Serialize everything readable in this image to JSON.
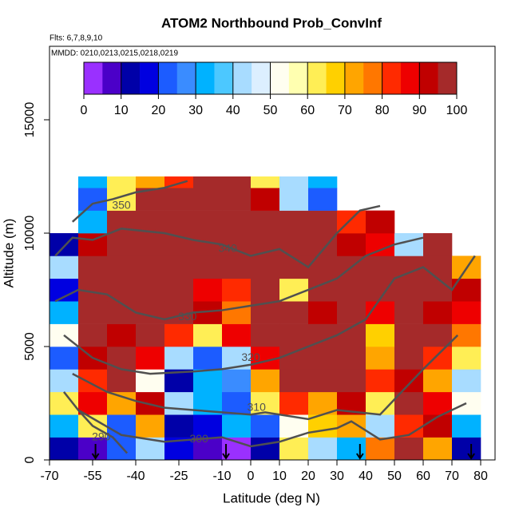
{
  "chart_data": {
    "type": "heatmap",
    "title": "ATOM2 Northbound Prob_ConvInf",
    "subtitle": "Flts: 6,7,8,9,10",
    "annotations": [
      "MMDD: 0210,0213,0215,0218,0219"
    ],
    "x_label": "Latitude (deg N)",
    "y_label": "Altitude (m)",
    "xlim": [
      -70,
      85
    ],
    "ylim": [
      0,
      18240
    ],
    "xticks": [
      -70,
      -55,
      -40,
      -25,
      -10,
      0,
      10,
      20,
      30,
      40,
      50,
      60,
      70,
      80
    ],
    "yticks": [
      0,
      5000,
      10000,
      15000
    ],
    "x_edges": [
      -70,
      -60,
      -50,
      -40,
      -30,
      -20,
      -10,
      0,
      10,
      20,
      30,
      40,
      50,
      60,
      70,
      80
    ],
    "y_edges": [
      0,
      1000,
      2000,
      3000,
      4000,
      5000,
      6000,
      7000,
      8000,
      9000,
      10000,
      11000,
      12000,
      12500
    ],
    "z": [
      [
        10,
        5,
        20,
        40,
        15,
        5,
        3,
        10,
        60,
        40,
        30,
        75,
        95,
        70,
        10
      ],
      [
        30,
        60,
        20,
        70,
        10,
        15,
        30,
        20,
        50,
        65,
        70,
        40,
        80,
        90,
        30
      ],
      [
        60,
        85,
        70,
        90,
        40,
        30,
        20,
        60,
        80,
        70,
        90,
        60,
        95,
        85,
        50
      ],
      [
        40,
        80,
        95,
        50,
        10,
        30,
        25,
        70,
        95,
        95,
        95,
        80,
        90,
        70,
        40
      ],
      [
        20,
        90,
        95,
        85,
        40,
        20,
        40,
        85,
        95,
        95,
        95,
        70,
        95,
        80,
        60
      ],
      [
        50,
        95,
        90,
        95,
        80,
        60,
        85,
        95,
        95,
        95,
        95,
        65,
        95,
        95,
        75
      ],
      [
        30,
        95,
        95,
        95,
        95,
        90,
        75,
        95,
        95,
        90,
        95,
        85,
        95,
        90,
        85
      ],
      [
        15,
        95,
        95,
        95,
        95,
        85,
        80,
        95,
        60,
        95,
        95,
        95,
        95,
        95,
        90
      ],
      [
        40,
        95,
        95,
        95,
        95,
        95,
        95,
        95,
        95,
        95,
        95,
        95,
        95,
        95,
        70
      ],
      [
        10,
        90,
        95,
        95,
        95,
        95,
        95,
        95,
        95,
        95,
        90,
        85,
        40,
        95,
        null
      ],
      [
        null,
        30,
        95,
        95,
        95,
        95,
        95,
        95,
        95,
        95,
        80,
        90,
        null,
        null,
        null
      ],
      [
        null,
        20,
        60,
        95,
        95,
        95,
        95,
        90,
        40,
        20,
        null,
        null,
        null,
        null,
        null
      ],
      [
        null,
        30,
        60,
        70,
        80,
        95,
        95,
        60,
        40,
        30,
        null,
        null,
        null,
        null,
        null
      ]
    ],
    "clim": [
      0,
      100
    ],
    "cticks": [
      0,
      10,
      20,
      30,
      40,
      50,
      60,
      70,
      80,
      90,
      100
    ],
    "colors": [
      "#9a30ff",
      "#4b00c8",
      "#0000a8",
      "#0000e0",
      "#1c5cff",
      "#3a8cff",
      "#00b2ff",
      "#4cc8ff",
      "#a8dcff",
      "#dcefff",
      "#fffef0",
      "#ffffb0",
      "#ffee55",
      "#ffd000",
      "#ffa500",
      "#ff7700",
      "#ff2a00",
      "#ee0000",
      "#c00000",
      "#a52a2a"
    ],
    "contour_color": "#505050",
    "contours": [
      {
        "level": 350,
        "x": [
          -62,
          -55,
          -48,
          -40,
          -30,
          -22
        ],
        "y": [
          10500,
          11300,
          11500,
          11800,
          12000,
          12300
        ],
        "label_x": -45,
        "label_y": 11200
      },
      {
        "level": 340,
        "x": [
          -68,
          -62,
          -55,
          -45,
          -30,
          -20,
          -10,
          0,
          10,
          20,
          30,
          38,
          45
        ],
        "y": [
          9000,
          9800,
          9700,
          10200,
          10000,
          9700,
          9500,
          9000,
          9300,
          8500,
          10000,
          11000,
          11200
        ],
        "label_x": -8,
        "label_y": 9300
      },
      {
        "level": 330,
        "x": [
          -68,
          -60,
          -50,
          -40,
          -30,
          -20,
          -10,
          0,
          10,
          20,
          30,
          40,
          50,
          60
        ],
        "y": [
          7000,
          7500,
          7300,
          6500,
          6200,
          6500,
          6600,
          6800,
          7000,
          7500,
          8000,
          9000,
          9500,
          9800
        ],
        "label_x": -22,
        "label_y": 6300
      },
      {
        "level": 320,
        "x": [
          -65,
          -55,
          -45,
          -35,
          -20,
          -10,
          0,
          10,
          20,
          30,
          40,
          50,
          60,
          70,
          78
        ],
        "y": [
          5500,
          4500,
          4000,
          3800,
          3900,
          4000,
          4200,
          4500,
          5000,
          5500,
          6200,
          8000,
          8500,
          7500,
          9000
        ],
        "label_x": 0,
        "label_y": 4500
      },
      {
        "level": 310,
        "x": [
          -62,
          -50,
          -40,
          -30,
          -20,
          -10,
          0,
          5,
          20,
          30,
          45,
          60,
          72
        ],
        "y": [
          3800,
          3000,
          2600,
          2300,
          2200,
          2100,
          2000,
          2100,
          1800,
          2200,
          2000,
          4000,
          5500
        ],
        "label_x": 2,
        "label_y": 2300
      },
      {
        "level": 300,
        "x": [
          -60,
          -45,
          -30,
          -20,
          -10,
          0,
          10,
          20,
          30,
          35,
          45,
          55,
          65,
          75
        ],
        "y": [
          2200,
          1100,
          800,
          900,
          1000,
          600,
          800,
          1200,
          1400,
          1700,
          900,
          1100,
          1900,
          2500
        ],
        "label_x": -18,
        "label_y": 900
      },
      {
        "level": 290,
        "x": [
          -65,
          -60,
          -55,
          -48,
          -43
        ],
        "y": [
          3000,
          2200,
          1500,
          1000,
          300
        ],
        "label_x": -52,
        "label_y": 1000
      }
    ],
    "arrows": [
      -54,
      -8.6,
      38,
      76.7
    ]
  }
}
